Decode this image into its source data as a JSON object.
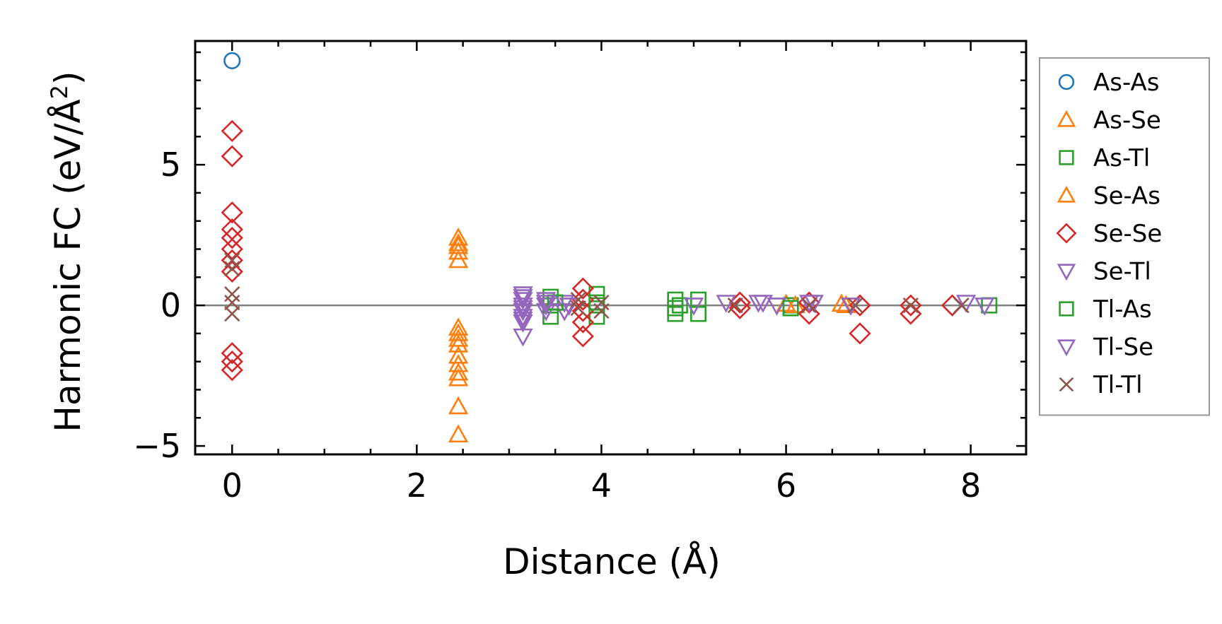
{
  "chart_data": {
    "type": "scatter",
    "xlabel": "Distance (Å)",
    "ylabel": "Harmonic FC (eV/Å²)",
    "ylabel_parts": {
      "main": "Harmonic FC (eV/Å",
      "superscript": "2",
      "close": ")"
    },
    "xlim": [
      -0.4,
      8.6
    ],
    "ylim": [
      -5.3,
      9.4
    ],
    "x_ticks": [
      0,
      2,
      4,
      6,
      8
    ],
    "x_tick_labels": [
      "0",
      "2",
      "4",
      "6",
      "8"
    ],
    "y_ticks": [
      -5,
      0,
      5
    ],
    "y_tick_labels": [
      "−5",
      "0",
      "5"
    ],
    "zero_line": true,
    "grid": false,
    "legend_position": "outside-right",
    "series": [
      {
        "name": "As-As",
        "marker": "circle",
        "color": "#1f77b4",
        "points": [
          [
            0,
            8.7
          ]
        ]
      },
      {
        "name": "As-Se",
        "marker": "triangle-up",
        "color": "#ff7f0e",
        "points": [
          [
            2.45,
            2.4
          ],
          [
            2.45,
            2.1
          ],
          [
            2.45,
            1.9
          ],
          [
            2.45,
            1.6
          ],
          [
            2.45,
            -0.8
          ],
          [
            2.45,
            -1.2
          ],
          [
            2.45,
            -1.4
          ],
          [
            2.45,
            -1.8
          ],
          [
            2.45,
            -2.1
          ],
          [
            2.45,
            -2.4
          ],
          [
            2.45,
            -3.6
          ],
          [
            2.45,
            -4.6
          ],
          [
            6.0,
            0.05
          ],
          [
            6.6,
            0.05
          ]
        ]
      },
      {
        "name": "As-Tl",
        "marker": "square",
        "color": "#2ca02c",
        "points": [
          [
            3.45,
            0.3
          ],
          [
            3.45,
            0.0
          ],
          [
            3.45,
            -0.4
          ],
          [
            3.95,
            0.4
          ],
          [
            3.95,
            0.0
          ],
          [
            3.95,
            -0.4
          ],
          [
            4.8,
            0.2
          ],
          [
            4.8,
            -0.1
          ],
          [
            4.8,
            -0.3
          ],
          [
            5.05,
            0.2
          ],
          [
            5.05,
            -0.3
          ],
          [
            6.05,
            0.0
          ],
          [
            8.2,
            0.0
          ]
        ]
      },
      {
        "name": "Se-As",
        "marker": "triangle-up",
        "color": "#ff7f0e",
        "points": [
          [
            2.45,
            2.2
          ],
          [
            2.45,
            -1.0
          ],
          [
            2.45,
            -2.6
          ],
          [
            6.1,
            0.0
          ],
          [
            6.65,
            0.0
          ]
        ]
      },
      {
        "name": "Se-Se",
        "marker": "diamond",
        "color": "#d62728",
        "points": [
          [
            0,
            6.2
          ],
          [
            0,
            5.3
          ],
          [
            0,
            3.3
          ],
          [
            0,
            2.7
          ],
          [
            0,
            2.4
          ],
          [
            0,
            2.0
          ],
          [
            0,
            1.6
          ],
          [
            0,
            1.2
          ],
          [
            0,
            -1.7
          ],
          [
            0,
            -2.0
          ],
          [
            0,
            -2.3
          ],
          [
            3.8,
            0.6
          ],
          [
            3.8,
            0.2
          ],
          [
            3.8,
            -0.2
          ],
          [
            3.8,
            -0.6
          ],
          [
            3.8,
            -1.1
          ],
          [
            5.5,
            0.1
          ],
          [
            5.5,
            -0.1
          ],
          [
            6.25,
            0.1
          ],
          [
            6.25,
            -0.3
          ],
          [
            6.8,
            0.0
          ],
          [
            6.8,
            -1.0
          ],
          [
            7.35,
            0.0
          ],
          [
            7.35,
            -0.3
          ],
          [
            7.8,
            0.0
          ]
        ]
      },
      {
        "name": "Se-Tl",
        "marker": "triangle-down",
        "color": "#9467bd",
        "points": [
          [
            3.15,
            0.4
          ],
          [
            3.15,
            0.2
          ],
          [
            3.15,
            0.0
          ],
          [
            3.15,
            -0.2
          ],
          [
            3.15,
            -0.4
          ],
          [
            3.15,
            -0.6
          ],
          [
            3.15,
            -1.1
          ],
          [
            3.4,
            0.2
          ],
          [
            3.4,
            0.0
          ],
          [
            3.4,
            -0.2
          ],
          [
            3.6,
            0.1
          ],
          [
            3.6,
            -0.2
          ],
          [
            5.35,
            0.1
          ],
          [
            5.7,
            0.1
          ],
          [
            5.9,
            0.0
          ],
          [
            6.25,
            0.1
          ],
          [
            6.7,
            0.0
          ],
          [
            7.95,
            0.1
          ]
        ]
      },
      {
        "name": "Tl-As",
        "marker": "square",
        "color": "#2ca02c",
        "points": [
          [
            3.5,
            0.1
          ],
          [
            3.95,
            0.1
          ],
          [
            4.85,
            0.0
          ],
          [
            6.05,
            -0.1
          ]
        ]
      },
      {
        "name": "Tl-Se",
        "marker": "triangle-down",
        "color": "#9467bd",
        "points": [
          [
            3.15,
            0.3
          ],
          [
            3.15,
            -0.1
          ],
          [
            3.15,
            -0.5
          ],
          [
            3.4,
            0.1
          ],
          [
            3.65,
            0.0
          ],
          [
            5.0,
            0.0
          ],
          [
            5.75,
            0.1
          ],
          [
            6.3,
            0.1
          ],
          [
            8.15,
            0.0
          ]
        ]
      },
      {
        "name": "Tl-Tl",
        "marker": "x",
        "color": "#8c564b",
        "points": [
          [
            0,
            1.6
          ],
          [
            0,
            1.3
          ],
          [
            0,
            0.4
          ],
          [
            0,
            0.1
          ],
          [
            0,
            -0.3
          ],
          [
            3.75,
            0.2
          ],
          [
            3.75,
            -0.1
          ],
          [
            4.0,
            0.1
          ],
          [
            4.0,
            -0.2
          ],
          [
            5.45,
            0.0
          ],
          [
            6.25,
            0.0
          ],
          [
            6.75,
            0.0
          ],
          [
            7.35,
            0.0
          ],
          [
            7.9,
            0.0
          ]
        ]
      }
    ]
  }
}
